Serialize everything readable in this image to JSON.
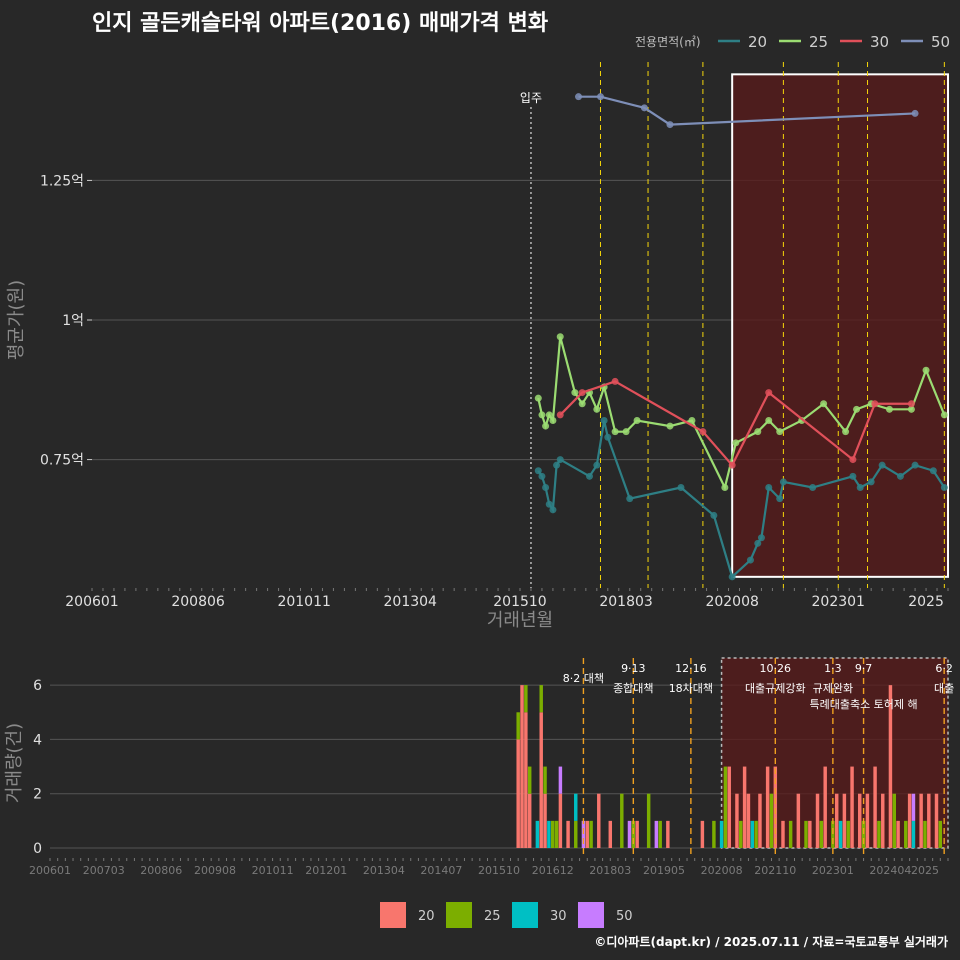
{
  "title": "인지 골든캐슬타워 아파트(2016) 매매가격 변화",
  "footer": "©디아파트(dapt.kr) / 2025.07.11 / 자료=국토교통부 실거래가",
  "colors": {
    "background": "#282828",
    "grid": "#555555",
    "line_20": "#2e7f85",
    "line_25": "#9bdc72",
    "line_30": "#e0505a",
    "line_50": "#7e8fb8",
    "bar_20": "#f8766d",
    "bar_25": "#7cae00",
    "bar_30": "#00bfc4",
    "bar_50": "#c77cff",
    "highlight_fill": "#5a1a1a",
    "policy_line": "#f5d60a"
  },
  "chart_data": [
    {
      "type": "line",
      "title": "인지 골든캐슬타워 아파트(2016) 매매가격 변화",
      "xlabel": "거래년월",
      "ylabel": "평균가(원)",
      "xlim": [
        "2006-01",
        "2025-07"
      ],
      "ylim": [
        0.52,
        1.48
      ],
      "y_unit": "억",
      "x_ticks": [
        "200601",
        "200806",
        "201011",
        "201304",
        "201510",
        "201803",
        "202008",
        "202301",
        "2025"
      ],
      "y_ticks": [
        "0.75억",
        "1억",
        "1.25억"
      ],
      "legend_title": "전용면적(㎡)",
      "legend_position": "top-right",
      "annotations": [
        {
          "label": "입주",
          "x": "2016-01"
        }
      ],
      "highlight_range": [
        "2020-08",
        "2025-07"
      ],
      "series": [
        {
          "name": "20",
          "points": [
            [
              "2016-03",
              0.73
            ],
            [
              "2016-04",
              0.72
            ],
            [
              "2016-05",
              0.7
            ],
            [
              "2016-06",
              0.67
            ],
            [
              "2016-07",
              0.66
            ],
            [
              "2016-08",
              0.74
            ],
            [
              "2016-09",
              0.75
            ],
            [
              "2017-05",
              0.72
            ],
            [
              "2017-07",
              0.74
            ],
            [
              "2017-09",
              0.82
            ],
            [
              "2017-10",
              0.79
            ],
            [
              "2018-04",
              0.68
            ],
            [
              "2019-06",
              0.7
            ],
            [
              "2020-03",
              0.65
            ],
            [
              "2020-08",
              0.54
            ],
            [
              "2021-01",
              0.57
            ],
            [
              "2021-03",
              0.6
            ],
            [
              "2021-04",
              0.61
            ],
            [
              "2021-06",
              0.7
            ],
            [
              "2021-09",
              0.68
            ],
            [
              "2021-10",
              0.71
            ],
            [
              "2022-06",
              0.7
            ],
            [
              "2023-05",
              0.72
            ],
            [
              "2023-07",
              0.7
            ],
            [
              "2023-10",
              0.71
            ],
            [
              "2024-01",
              0.74
            ],
            [
              "2024-06",
              0.72
            ],
            [
              "2024-10",
              0.74
            ],
            [
              "2025-03",
              0.73
            ],
            [
              "2025-06",
              0.7
            ]
          ]
        },
        {
          "name": "25",
          "points": [
            [
              "2016-03",
              0.86
            ],
            [
              "2016-04",
              0.83
            ],
            [
              "2016-05",
              0.81
            ],
            [
              "2016-06",
              0.83
            ],
            [
              "2016-07",
              0.82
            ],
            [
              "2016-09",
              0.97
            ],
            [
              "2017-01",
              0.87
            ],
            [
              "2017-03",
              0.85
            ],
            [
              "2017-05",
              0.87
            ],
            [
              "2017-07",
              0.84
            ],
            [
              "2017-09",
              0.88
            ],
            [
              "2017-12",
              0.8
            ],
            [
              "2018-03",
              0.8
            ],
            [
              "2018-06",
              0.82
            ],
            [
              "2019-03",
              0.81
            ],
            [
              "2019-09",
              0.82
            ],
            [
              "2020-06",
              0.7
            ],
            [
              "2020-09",
              0.78
            ],
            [
              "2021-03",
              0.8
            ],
            [
              "2021-06",
              0.82
            ],
            [
              "2021-09",
              0.8
            ],
            [
              "2022-03",
              0.82
            ],
            [
              "2022-09",
              0.85
            ],
            [
              "2023-03",
              0.8
            ],
            [
              "2023-06",
              0.84
            ],
            [
              "2023-10",
              0.85
            ],
            [
              "2024-03",
              0.84
            ],
            [
              "2024-09",
              0.84
            ],
            [
              "2025-01",
              0.91
            ],
            [
              "2025-06",
              0.83
            ]
          ]
        },
        {
          "name": "30",
          "points": [
            [
              "2016-09",
              0.83
            ],
            [
              "2017-03",
              0.87
            ],
            [
              "2017-12",
              0.89
            ],
            [
              "2019-12",
              0.8
            ],
            [
              "2020-08",
              0.74
            ],
            [
              "2021-06",
              0.87
            ],
            [
              "2023-05",
              0.75
            ],
            [
              "2023-11",
              0.85
            ],
            [
              "2024-09",
              0.85
            ]
          ]
        },
        {
          "name": "50",
          "points": [
            [
              "2017-02",
              1.4
            ],
            [
              "2017-08",
              1.4
            ],
            [
              "2018-08",
              1.38
            ],
            [
              "2019-03",
              1.35
            ],
            [
              "2024-10",
              1.37
            ]
          ]
        }
      ]
    },
    {
      "type": "bar",
      "ylabel": "거래량(건)",
      "ylim": [
        0,
        7
      ],
      "xlim": [
        "2006-01",
        "2025-07"
      ],
      "y_ticks": [
        "0",
        "2",
        "4",
        "6"
      ],
      "x_ticks": [
        "200601",
        "200703",
        "200806",
        "200908",
        "201011",
        "201201",
        "201304",
        "201407",
        "201510",
        "201612",
        "201803",
        "201905",
        "202008",
        "202110",
        "202301",
        "202404",
        "2025"
      ],
      "stacked": true,
      "legend_position": "bottom",
      "series": [
        {
          "name": "20",
          "values": [
            [
              "2016-03",
              4
            ],
            [
              "2016-04",
              6
            ],
            [
              "2016-05",
              5
            ],
            [
              "2016-06",
              2
            ],
            [
              "2016-09",
              5
            ],
            [
              "2016-10",
              2
            ],
            [
              "2017-02",
              2
            ],
            [
              "2017-04",
              1
            ],
            [
              "2017-09",
              1
            ],
            [
              "2017-12",
              2
            ],
            [
              "2018-03",
              1
            ],
            [
              "2018-10",
              1
            ],
            [
              "2019-06",
              1
            ],
            [
              "2020-03",
              1
            ],
            [
              "2020-10",
              3
            ],
            [
              "2020-12",
              2
            ],
            [
              "2021-02",
              3
            ],
            [
              "2021-03",
              2
            ],
            [
              "2021-06",
              2
            ],
            [
              "2021-08",
              3
            ],
            [
              "2021-10",
              3
            ],
            [
              "2021-12",
              1
            ],
            [
              "2022-04",
              2
            ],
            [
              "2022-07",
              1
            ],
            [
              "2022-09",
              2
            ],
            [
              "2022-11",
              3
            ],
            [
              "2023-02",
              2
            ],
            [
              "2023-04",
              2
            ],
            [
              "2023-06",
              3
            ],
            [
              "2023-08",
              2
            ],
            [
              "2023-10",
              2
            ],
            [
              "2023-12",
              3
            ],
            [
              "2024-02",
              2
            ],
            [
              "2024-04",
              6
            ],
            [
              "2024-06",
              1
            ],
            [
              "2024-09",
              2
            ],
            [
              "2024-12",
              2
            ],
            [
              "2025-02",
              2
            ],
            [
              "2025-04",
              2
            ]
          ]
        },
        {
          "name": "25",
          "values": [
            [
              "2016-03",
              1
            ],
            [
              "2016-05",
              1
            ],
            [
              "2016-06",
              1
            ],
            [
              "2016-09",
              1
            ],
            [
              "2016-10",
              1
            ],
            [
              "2016-12",
              1
            ],
            [
              "2017-01",
              1
            ],
            [
              "2017-06",
              1
            ],
            [
              "2017-10",
              1
            ],
            [
              "2018-06",
              2
            ],
            [
              "2018-09",
              1
            ],
            [
              "2019-01",
              2
            ],
            [
              "2019-04",
              1
            ],
            [
              "2020-06",
              1
            ],
            [
              "2020-09",
              3
            ],
            [
              "2021-01",
              1
            ],
            [
              "2021-05",
              1
            ],
            [
              "2021-09",
              2
            ],
            [
              "2022-02",
              1
            ],
            [
              "2022-06",
              1
            ],
            [
              "2022-10",
              1
            ],
            [
              "2023-01",
              1
            ],
            [
              "2023-05",
              1
            ],
            [
              "2023-09",
              1
            ],
            [
              "2024-01",
              1
            ],
            [
              "2024-05",
              2
            ],
            [
              "2024-08",
              1
            ],
            [
              "2025-01",
              1
            ],
            [
              "2025-05",
              1
            ]
          ]
        },
        {
          "name": "30",
          "values": [
            [
              "2016-08",
              1
            ],
            [
              "2016-11",
              1
            ],
            [
              "2017-06",
              1
            ],
            [
              "2020-08",
              1
            ],
            [
              "2021-04",
              1
            ],
            [
              "2023-03",
              1
            ],
            [
              "2024-10",
              1
            ]
          ]
        },
        {
          "name": "50",
          "values": [
            [
              "2017-02",
              1
            ],
            [
              "2017-08",
              1
            ],
            [
              "2018-08",
              1
            ],
            [
              "2019-03",
              1
            ],
            [
              "2024-10",
              1
            ]
          ]
        }
      ]
    }
  ],
  "policies": [
    {
      "date": "2017-08",
      "label_top": "8·2 대책",
      "label_bottom": ""
    },
    {
      "date": "2018-09",
      "label_top": "9·13",
      "label_bottom": "종합대책"
    },
    {
      "date": "2019-12",
      "label_top": "12·16",
      "label_bottom": "18차대책"
    },
    {
      "date": "2021-10",
      "label_top": "10·26",
      "label_bottom": "대출규제강화"
    },
    {
      "date": "2023-01",
      "label_top": "1·3",
      "label_bottom": "규제완화"
    },
    {
      "date": "2023-09",
      "label_top": "9·7",
      "label_bottom": "특례대출축소 토허제 해"
    },
    {
      "date": "2025-06",
      "label_top": "6·2",
      "label_bottom": "대출"
    }
  ]
}
